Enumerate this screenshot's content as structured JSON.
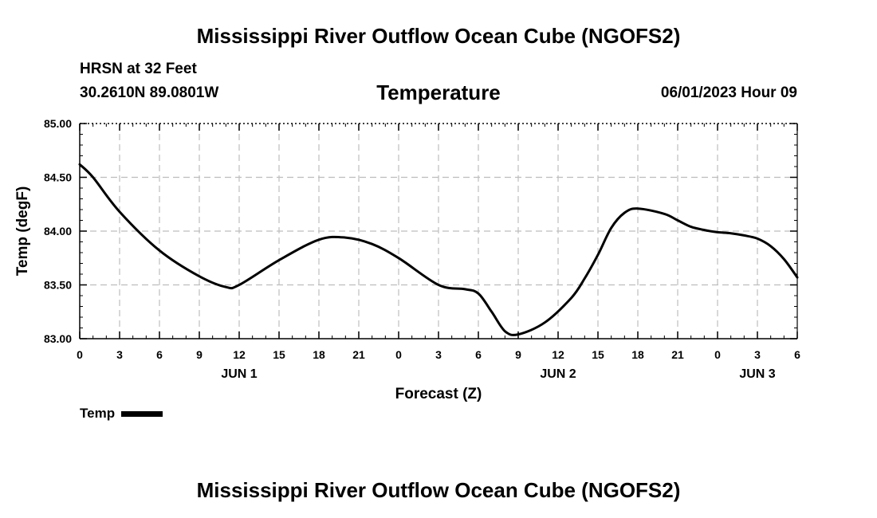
{
  "header": {
    "title": "Mississippi River Outflow Ocean Cube (NGOFS2)",
    "station": "HRSN at 32 Feet",
    "coordinates": "30.2610N  89.0801W",
    "chart_title": "Temperature",
    "datetime": "06/01/2023 Hour 09"
  },
  "footer": {
    "title": "Mississippi River Outflow Ocean Cube (NGOFS2)"
  },
  "legend": {
    "label": "Temp",
    "color": "#000000"
  },
  "chart_data": {
    "type": "line",
    "title": "Temperature",
    "xlabel": "Forecast (Z)",
    "ylabel": "Temp (degF)",
    "x_unit": "hours since 2023-06-01 00Z",
    "xlim": [
      0,
      54
    ],
    "ylim": [
      83.0,
      85.0
    ],
    "grid": true,
    "y_ticks": [
      "83.00",
      "83.50",
      "84.00",
      "84.50",
      "85.00"
    ],
    "x_tick_values": [
      0,
      3,
      6,
      9,
      12,
      15,
      18,
      21,
      24,
      27,
      30,
      33,
      36,
      39,
      42,
      45,
      48,
      51,
      54
    ],
    "x_tick_labels": [
      "0",
      "3",
      "6",
      "9",
      "12",
      "15",
      "18",
      "21",
      "0",
      "3",
      "6",
      "9",
      "12",
      "15",
      "18",
      "21",
      "0",
      "3",
      "6"
    ],
    "date_labels": [
      {
        "x": 12,
        "label": "JUN 1"
      },
      {
        "x": 36,
        "label": "JUN 2"
      },
      {
        "x": 51,
        "label": "JUN 3"
      }
    ],
    "series": [
      {
        "name": "Temp",
        "color": "#000000",
        "x": [
          0,
          1,
          3,
          6,
          9,
          11,
          12,
          15,
          18,
          20,
          22,
          24,
          27,
          29,
          30,
          31,
          32,
          33,
          35,
          37,
          38,
          39,
          40,
          41,
          42,
          44,
          45,
          46,
          47,
          48,
          49,
          50,
          51,
          52,
          53,
          54
        ],
        "y": [
          84.62,
          84.5,
          84.18,
          83.82,
          83.58,
          83.48,
          83.5,
          83.73,
          83.92,
          83.94,
          83.88,
          83.75,
          83.5,
          83.46,
          83.42,
          83.25,
          83.07,
          83.04,
          83.15,
          83.38,
          83.56,
          83.78,
          84.03,
          84.17,
          84.21,
          84.16,
          84.1,
          84.04,
          84.01,
          83.99,
          83.98,
          83.96,
          83.93,
          83.86,
          83.74,
          83.57
        ]
      }
    ]
  }
}
